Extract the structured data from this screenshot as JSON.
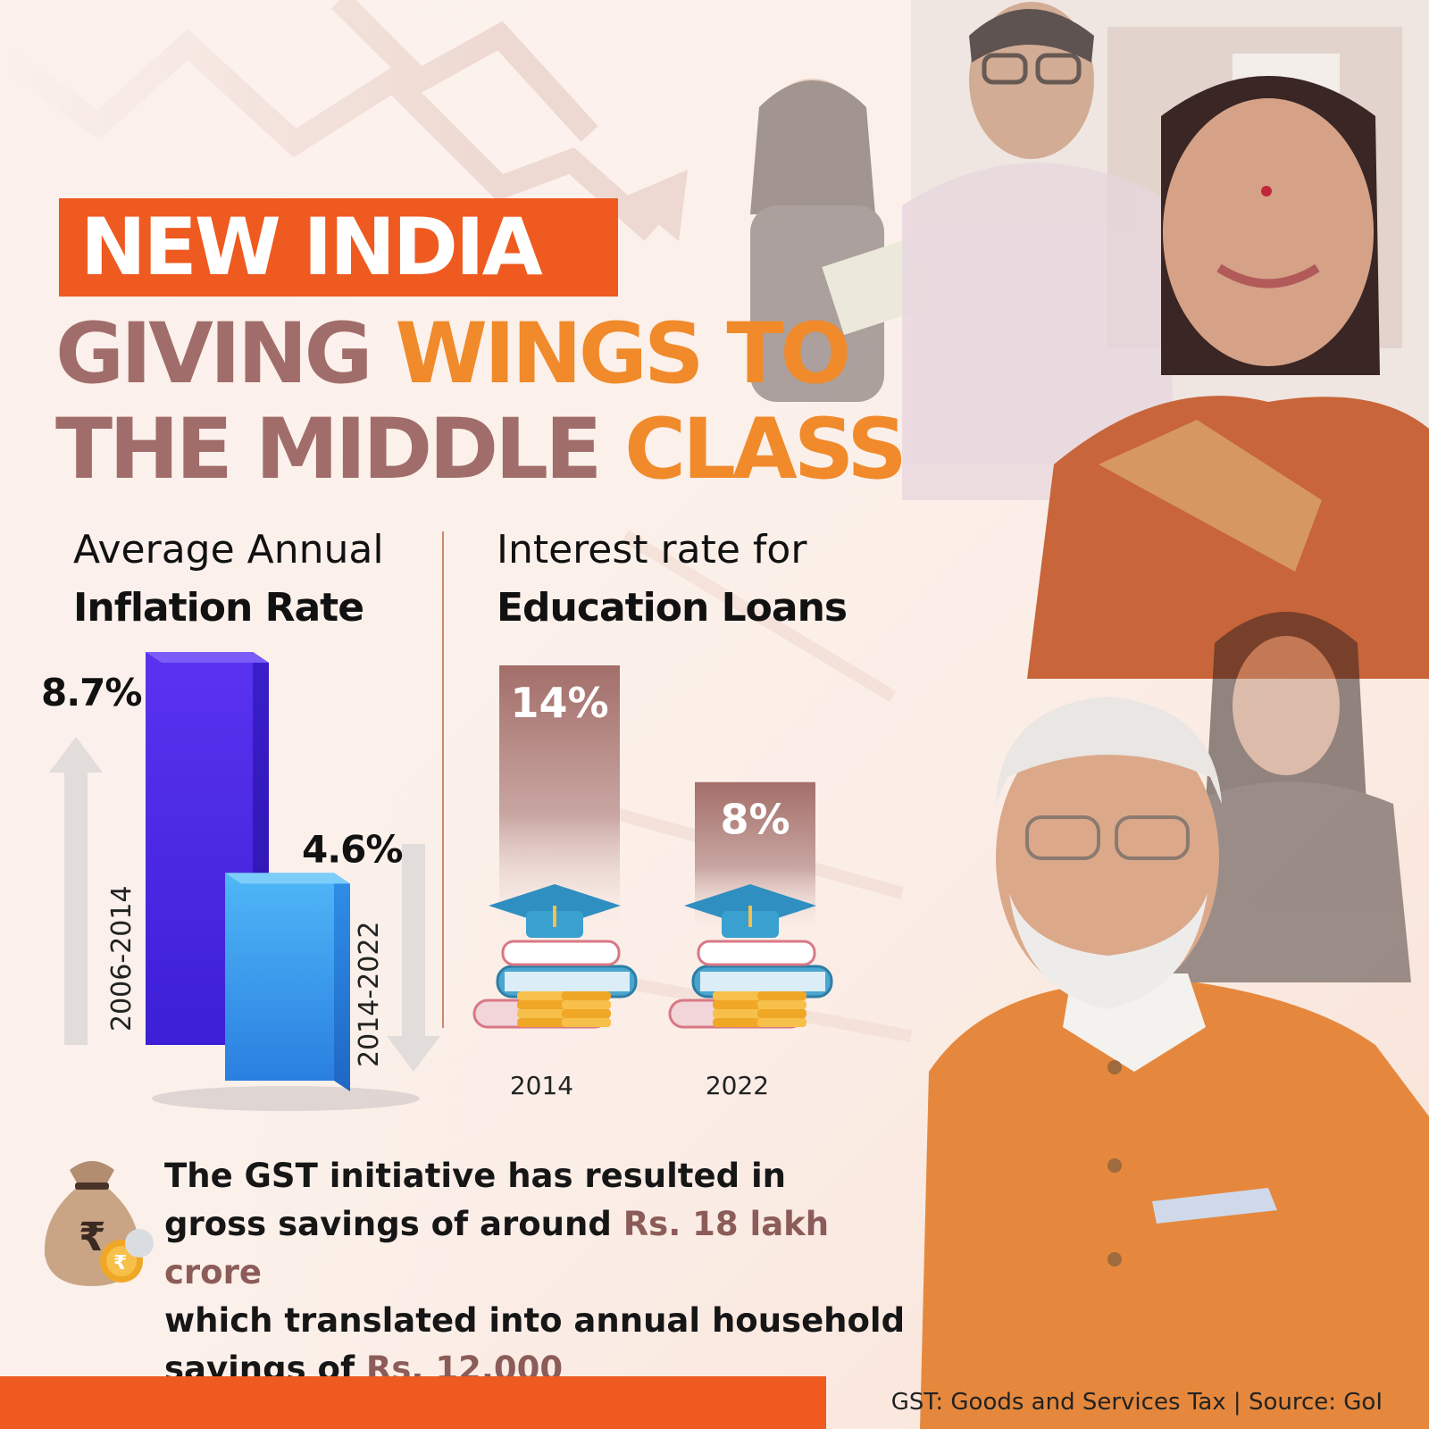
{
  "header": {
    "title": "NEW INDIA",
    "subtitle_line1_part1": "GIVING ",
    "subtitle_line1_part2": "WINGS TO",
    "subtitle_line2_part1": "THE MIDDLE ",
    "subtitle_line2_part2": "CLASS"
  },
  "colors": {
    "accent_orange": "#ee5a1f",
    "subtitle_mauve": "#a16d6a",
    "subtitle_orange": "#f08a2b",
    "bar_dark_blue": "#4a25e6",
    "bar_light_blue": "#2e9ff0",
    "loan_bar": "#a8716c"
  },
  "chart_data": [
    {
      "type": "bar",
      "title_line1": "Average Annual",
      "title_line2": "Inflation Rate",
      "categories": [
        "2006-2014",
        "2014-2022"
      ],
      "values": [
        8.7,
        4.6
      ],
      "value_labels": [
        "8.7%",
        "4.6%"
      ],
      "ylim": [
        0,
        9.5
      ],
      "grid": false,
      "trend_arrows": [
        "up",
        "down"
      ]
    },
    {
      "type": "bar",
      "title_line1": "Interest rate for",
      "title_line2": "Education Loans",
      "categories": [
        "2014",
        "2022"
      ],
      "values": [
        14,
        8
      ],
      "value_labels": [
        "14%",
        "8%"
      ],
      "ylim": [
        0,
        14
      ],
      "grid": false,
      "icons": [
        "graduation-books-coins-icon",
        "graduation-books-coins-icon"
      ]
    }
  ],
  "gst": {
    "icon": "money-bag-rupee-icon",
    "line1": "The GST initiative has resulted in",
    "line2_prefix": "gross savings of around ",
    "line2_highlight": "Rs. 18 lakh crore",
    "line3": "which translated into annual household",
    "line4_prefix": "savings of ",
    "line4_highlight": "Rs. 12,000"
  },
  "footer": {
    "note": "GST: Goods and Services Tax | Source: GoI"
  }
}
